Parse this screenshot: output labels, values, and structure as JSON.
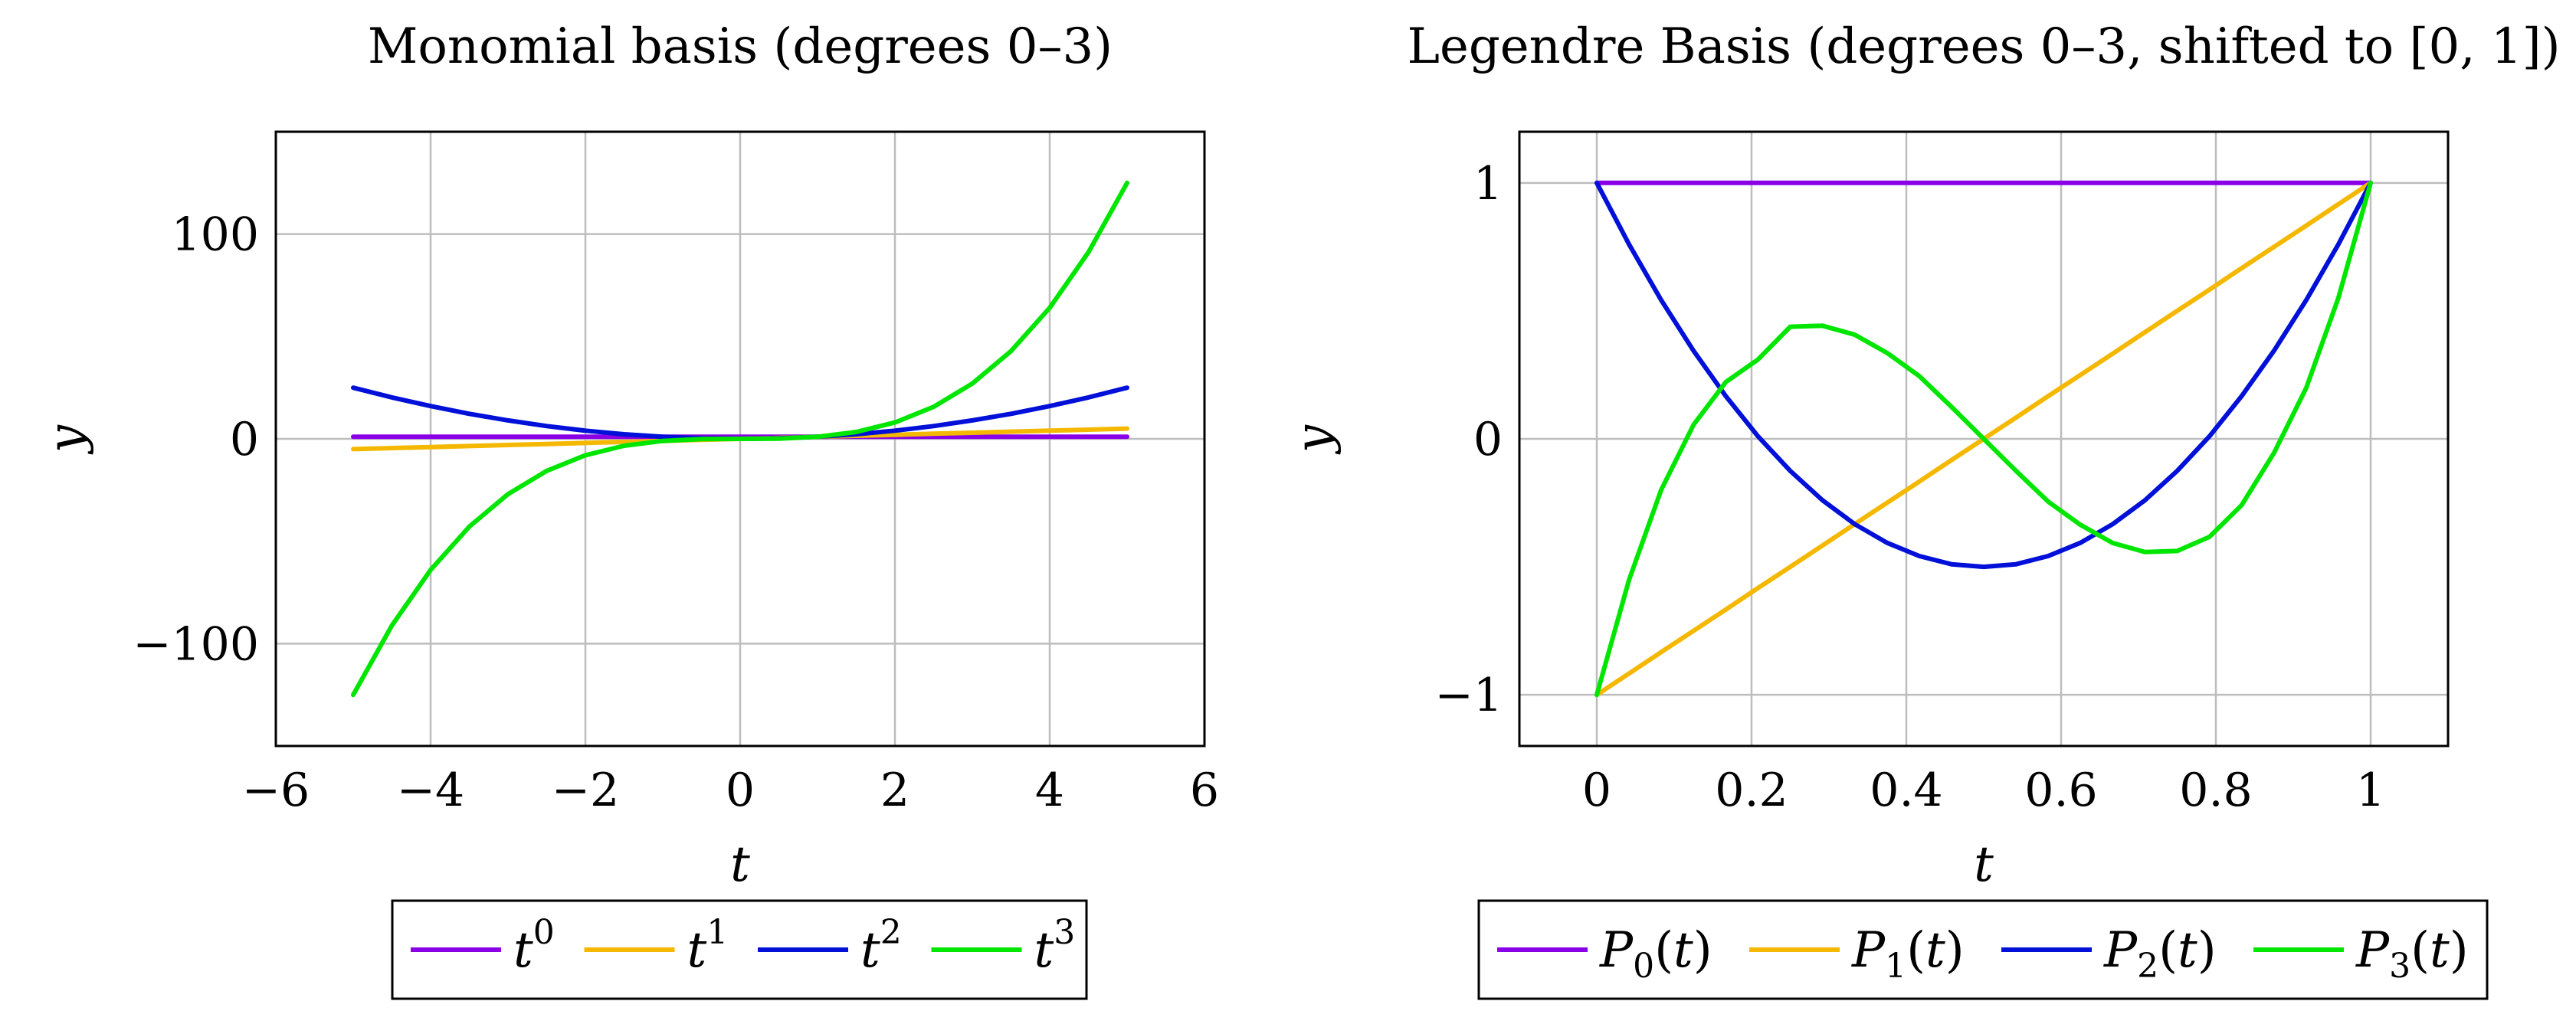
{
  "chart_data": [
    {
      "type": "line",
      "title": "Monomial basis (degrees 0–3)",
      "xlabel": "t",
      "ylabel": "y",
      "xlim": [
        -6,
        6
      ],
      "ylim": [
        -150,
        150
      ],
      "xticks": [
        -6,
        -4,
        -2,
        0,
        2,
        4,
        6
      ],
      "yticks": [
        -100,
        0,
        100
      ],
      "grid": true,
      "legend_position": "below",
      "x": [
        -5,
        -4.5,
        -4,
        -3.5,
        -3,
        -2.5,
        -2,
        -1.5,
        -1,
        -0.5,
        0,
        0.5,
        1,
        1.5,
        2,
        2.5,
        3,
        3.5,
        4,
        4.5,
        5
      ],
      "series": [
        {
          "name": "t^0",
          "base": "t",
          "sup": "0",
          "sub": "",
          "tail": "",
          "color": "#8a00e6",
          "values": [
            1,
            1,
            1,
            1,
            1,
            1,
            1,
            1,
            1,
            1,
            1,
            1,
            1,
            1,
            1,
            1,
            1,
            1,
            1,
            1,
            1
          ]
        },
        {
          "name": "t^1",
          "base": "t",
          "sup": "1",
          "sub": "",
          "tail": "",
          "color": "#f5b800",
          "values": [
            -5,
            -4.5,
            -4,
            -3.5,
            -3,
            -2.5,
            -2,
            -1.5,
            -1,
            -0.5,
            0,
            0.5,
            1,
            1.5,
            2,
            2.5,
            3,
            3.5,
            4,
            4.5,
            5
          ]
        },
        {
          "name": "t^2",
          "base": "t",
          "sup": "2",
          "sub": "",
          "tail": "",
          "color": "#0010d8",
          "values": [
            25,
            20.25,
            16,
            12.25,
            9,
            6.25,
            4,
            2.25,
            1,
            0.25,
            0,
            0.25,
            1,
            2.25,
            4,
            6.25,
            9,
            12.25,
            16,
            20.25,
            25
          ]
        },
        {
          "name": "t^3",
          "base": "t",
          "sup": "3",
          "sub": "",
          "tail": "",
          "color": "#00e600",
          "values": [
            -125,
            -91.125,
            -64,
            -42.875,
            -27,
            -15.625,
            -8,
            -3.375,
            -1,
            -0.125,
            0,
            0.125,
            1,
            3.375,
            8,
            15.625,
            27,
            42.875,
            64,
            91.125,
            125
          ]
        }
      ]
    },
    {
      "type": "line",
      "title": "Legendre Basis (degrees 0–3, shifted to [0, 1])",
      "xlabel": "t",
      "ylabel": "y",
      "xlim": [
        -0.1,
        1.1
      ],
      "ylim": [
        -1.2,
        1.2
      ],
      "xticks": [
        0,
        0.2,
        0.4,
        0.6,
        0.8,
        1
      ],
      "yticks": [
        -1,
        0,
        1
      ],
      "grid": true,
      "legend_position": "below",
      "x": [
        0,
        0.0417,
        0.0833,
        0.125,
        0.1667,
        0.2083,
        0.25,
        0.2917,
        0.3333,
        0.375,
        0.4167,
        0.4583,
        0.5,
        0.5417,
        0.5833,
        0.625,
        0.6667,
        0.7083,
        0.75,
        0.7917,
        0.8333,
        0.875,
        0.9167,
        0.9583,
        1
      ],
      "series": [
        {
          "name": "P0(t)",
          "base": "P",
          "sup": "",
          "sub": "0",
          "tail": "(t)",
          "color": "#8a00e6",
          "values": [
            1,
            1,
            1,
            1,
            1,
            1,
            1,
            1,
            1,
            1,
            1,
            1,
            1,
            1,
            1,
            1,
            1,
            1,
            1,
            1,
            1,
            1,
            1,
            1,
            1
          ]
        },
        {
          "name": "P1(t)",
          "base": "P",
          "sup": "",
          "sub": "1",
          "tail": "(t)",
          "color": "#f5b800",
          "values": [
            -1,
            -0.917,
            -0.833,
            -0.75,
            -0.667,
            -0.583,
            -0.5,
            -0.417,
            -0.333,
            -0.25,
            -0.167,
            -0.083,
            0,
            0.083,
            0.167,
            0.25,
            0.333,
            0.417,
            0.5,
            0.583,
            0.667,
            0.75,
            0.833,
            0.917,
            1
          ]
        },
        {
          "name": "P2(t)",
          "base": "P",
          "sup": "",
          "sub": "2",
          "tail": "(t)",
          "color": "#0010d8",
          "values": [
            1,
            0.76,
            0.542,
            0.344,
            0.167,
            0.01,
            -0.125,
            -0.24,
            -0.333,
            -0.406,
            -0.458,
            -0.49,
            -0.5,
            -0.49,
            -0.458,
            -0.406,
            -0.333,
            -0.24,
            -0.125,
            0.01,
            0.167,
            0.344,
            0.542,
            0.76,
            1
          ]
        },
        {
          "name": "P3(t)",
          "base": "P",
          "sup": "",
          "sub": "3",
          "tail": "(t)",
          "color": "#00e600",
          "values": [
            -1,
            -0.551,
            -0.199,
            0.055,
            0.222,
            0.31,
            0.438,
            0.442,
            0.407,
            0.336,
            0.245,
            0.125,
            0,
            -0.125,
            -0.245,
            -0.336,
            -0.407,
            -0.442,
            -0.438,
            -0.383,
            -0.259,
            -0.055,
            0.199,
            0.551,
            1
          ]
        }
      ]
    }
  ]
}
